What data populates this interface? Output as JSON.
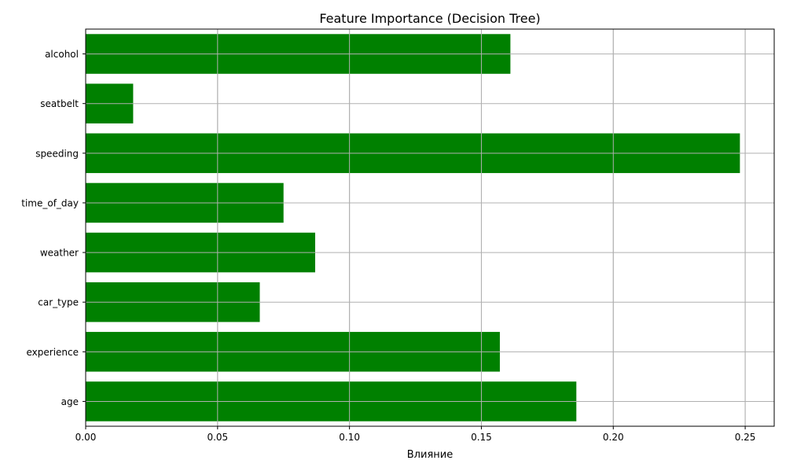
{
  "chart_data": {
    "type": "bar",
    "orientation": "horizontal",
    "title": "Feature Importance (Decision Tree)",
    "xlabel": "Влияние",
    "ylabel": "",
    "categories": [
      "age",
      "experience",
      "car_type",
      "weather",
      "time_of_day",
      "speeding",
      "seatbelt",
      "alcohol"
    ],
    "values": [
      0.186,
      0.157,
      0.066,
      0.087,
      0.075,
      0.248,
      0.018,
      0.161
    ],
    "xlim": [
      0,
      0.261
    ],
    "xticks": [
      0.0,
      0.05,
      0.1,
      0.15,
      0.2,
      0.25
    ],
    "xtick_labels": [
      "0.00",
      "0.05",
      "0.10",
      "0.15",
      "0.20",
      "0.25"
    ],
    "grid": true,
    "bar_color": "#008000",
    "grid_color": "#b0b0b0"
  }
}
